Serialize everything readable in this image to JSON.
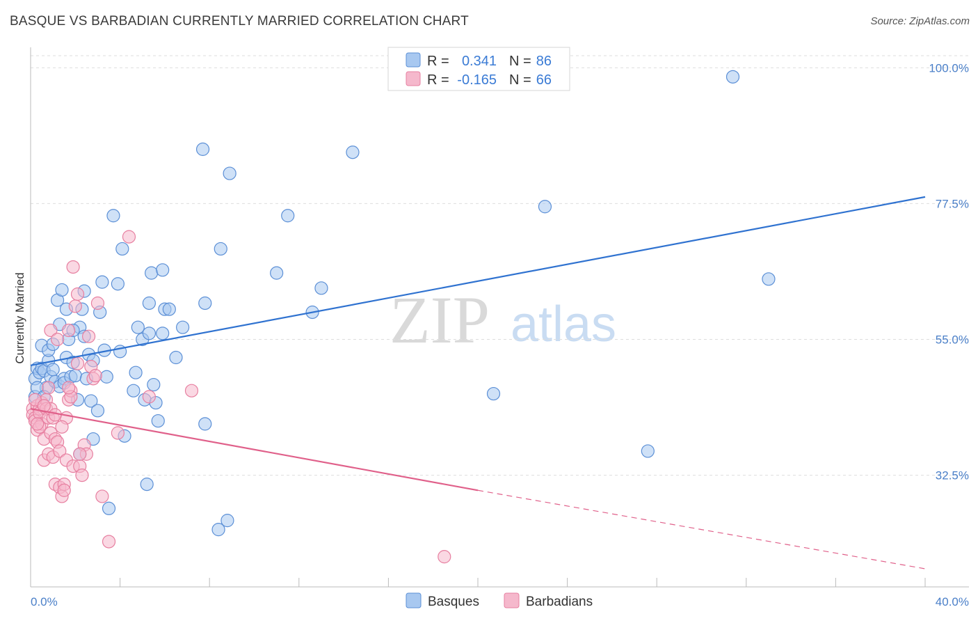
{
  "header": {
    "title": "BASQUE VS BARBADIAN CURRENTLY MARRIED CORRELATION CHART",
    "source": "Source: ZipAtlas.com"
  },
  "watermark": {
    "zip": "ZIP",
    "atlas": "atlas"
  },
  "legend": {
    "rows": [
      {
        "r_label": "R =",
        "r_value": "0.341",
        "n_label": "N =",
        "n_value": "86"
      },
      {
        "r_label": "R =",
        "r_value": "-0.165",
        "n_label": "N =",
        "n_value": "66"
      }
    ],
    "bottom": [
      "Basques",
      "Barbadians"
    ]
  },
  "colors": {
    "basques_fill": "#a8c8f0",
    "basques_stroke": "#5b8fd6",
    "basques_line": "#2f72d0",
    "barbadians_fill": "#f5b8cc",
    "barbadians_stroke": "#e77fa0",
    "barbadians_line": "#e0608a",
    "tick_text": "#4a7fc8",
    "grid": "#dddddd"
  },
  "chart_data": {
    "type": "scatter",
    "title": "BASQUE VS BARBADIAN CURRENTLY MARRIED CORRELATION CHART",
    "ylabel": "Currently Married",
    "xlim": [
      0,
      40
    ],
    "ylim": [
      14,
      102
    ],
    "x_tick_labels": [
      "0.0%",
      "40.0%"
    ],
    "y_ticks": [
      32.5,
      55.0,
      77.5,
      100.0
    ],
    "y_tick_labels": [
      "32.5%",
      "55.0%",
      "77.5%",
      "100.0%"
    ],
    "grid": true,
    "legend_position": "top-center",
    "series": [
      {
        "name": "Basques",
        "R": 0.341,
        "N": 86,
        "trend": {
          "x": [
            0,
            40
          ],
          "y": [
            50.7,
            78.6
          ],
          "style": "solid"
        },
        "points": [
          [
            0.2,
            48.5
          ],
          [
            0.2,
            45.5
          ],
          [
            0.3,
            50.2
          ],
          [
            0.4,
            49.5
          ],
          [
            0.5,
            50.2
          ],
          [
            0.5,
            54.0
          ],
          [
            0.6,
            49.8
          ],
          [
            0.7,
            47.0
          ],
          [
            0.8,
            51.5
          ],
          [
            0.8,
            53.2
          ],
          [
            0.9,
            48.8
          ],
          [
            1.0,
            50.0
          ],
          [
            1.0,
            54.2
          ],
          [
            1.1,
            48.0
          ],
          [
            1.2,
            61.5
          ],
          [
            1.3,
            57.5
          ],
          [
            1.3,
            47.2
          ],
          [
            1.4,
            63.2
          ],
          [
            1.5,
            48.5
          ],
          [
            1.5,
            47.8
          ],
          [
            1.6,
            52.0
          ],
          [
            1.6,
            60.0
          ],
          [
            1.7,
            55.0
          ],
          [
            1.8,
            48.8
          ],
          [
            1.9,
            51.2
          ],
          [
            2.0,
            49.0
          ],
          [
            2.1,
            45.0
          ],
          [
            2.2,
            57.0
          ],
          [
            2.2,
            36.0
          ],
          [
            2.3,
            60.0
          ],
          [
            2.4,
            63.0
          ],
          [
            2.5,
            48.5
          ],
          [
            2.6,
            52.5
          ],
          [
            2.7,
            44.8
          ],
          [
            2.8,
            51.5
          ],
          [
            2.8,
            38.5
          ],
          [
            3.0,
            43.2
          ],
          [
            3.1,
            59.5
          ],
          [
            3.2,
            64.5
          ],
          [
            3.3,
            53.2
          ],
          [
            3.4,
            48.8
          ],
          [
            3.5,
            27.0
          ],
          [
            3.7,
            75.5
          ],
          [
            3.9,
            64.2
          ],
          [
            4.0,
            53.0
          ],
          [
            4.1,
            70.0
          ],
          [
            4.2,
            39.0
          ],
          [
            4.6,
            46.5
          ],
          [
            4.7,
            49.5
          ],
          [
            4.8,
            57.0
          ],
          [
            5.0,
            55.0
          ],
          [
            5.1,
            45.0
          ],
          [
            5.2,
            31.0
          ],
          [
            5.3,
            56.0
          ],
          [
            5.3,
            61.0
          ],
          [
            5.4,
            66.0
          ],
          [
            5.5,
            47.5
          ],
          [
            5.6,
            44.5
          ],
          [
            5.7,
            41.5
          ],
          [
            5.9,
            66.5
          ],
          [
            5.9,
            56.0
          ],
          [
            6.0,
            60.0
          ],
          [
            6.2,
            60.0
          ],
          [
            6.5,
            52.0
          ],
          [
            6.8,
            57.0
          ],
          [
            7.7,
            86.5
          ],
          [
            7.8,
            41.0
          ],
          [
            7.8,
            61.0
          ],
          [
            8.4,
            23.5
          ],
          [
            8.5,
            70.0
          ],
          [
            8.8,
            25.0
          ],
          [
            8.9,
            82.5
          ],
          [
            11.0,
            66.0
          ],
          [
            11.5,
            75.5
          ],
          [
            12.6,
            59.5
          ],
          [
            13.0,
            63.5
          ],
          [
            14.4,
            86.0
          ],
          [
            20.7,
            46.0
          ],
          [
            23.0,
            77.0
          ],
          [
            27.6,
            36.5
          ],
          [
            31.4,
            98.5
          ],
          [
            33.0,
            65.0
          ],
          [
            0.3,
            47.0
          ],
          [
            0.6,
            45.5
          ],
          [
            1.9,
            56.5
          ],
          [
            2.4,
            55.5
          ]
        ]
      },
      {
        "name": "Barbadians",
        "R": -0.165,
        "N": 66,
        "trend": {
          "x": [
            0,
            20
          ],
          "y": [
            43.5,
            30.0
          ],
          "dashed_to": [
            40,
            17.0
          ],
          "style": "solid-then-dashed"
        },
        "points": [
          [
            0.1,
            43.5
          ],
          [
            0.1,
            42.5
          ],
          [
            0.2,
            42.0
          ],
          [
            0.2,
            41.5
          ],
          [
            0.3,
            44.0
          ],
          [
            0.3,
            40.0
          ],
          [
            0.4,
            43.5
          ],
          [
            0.4,
            42.8
          ],
          [
            0.5,
            44.5
          ],
          [
            0.5,
            41.0
          ],
          [
            0.6,
            38.5
          ],
          [
            0.6,
            35.0
          ],
          [
            0.7,
            45.0
          ],
          [
            0.7,
            43.5
          ],
          [
            0.8,
            42.0
          ],
          [
            0.8,
            36.0
          ],
          [
            0.9,
            56.5
          ],
          [
            0.9,
            39.5
          ],
          [
            1.0,
            42.0
          ],
          [
            1.0,
            35.5
          ],
          [
            1.1,
            38.5
          ],
          [
            1.1,
            31.0
          ],
          [
            1.2,
            55.0
          ],
          [
            1.2,
            38.0
          ],
          [
            1.3,
            36.5
          ],
          [
            1.3,
            30.5
          ],
          [
            1.4,
            29.0
          ],
          [
            1.5,
            31.0
          ],
          [
            1.5,
            30.0
          ],
          [
            1.6,
            42.0
          ],
          [
            1.6,
            35.0
          ],
          [
            1.7,
            56.5
          ],
          [
            1.7,
            45.0
          ],
          [
            1.8,
            46.5
          ],
          [
            1.8,
            45.5
          ],
          [
            1.9,
            67.0
          ],
          [
            1.9,
            34.0
          ],
          [
            2.0,
            60.5
          ],
          [
            2.1,
            62.5
          ],
          [
            2.1,
            51.0
          ],
          [
            2.2,
            34.0
          ],
          [
            2.3,
            32.5
          ],
          [
            2.4,
            37.5
          ],
          [
            2.5,
            36.0
          ],
          [
            2.6,
            55.5
          ],
          [
            2.7,
            50.5
          ],
          [
            2.8,
            48.5
          ],
          [
            2.9,
            49.0
          ],
          [
            3.0,
            61.0
          ],
          [
            3.2,
            29.0
          ],
          [
            3.5,
            21.5
          ],
          [
            3.9,
            39.5
          ],
          [
            4.4,
            72.0
          ],
          [
            5.3,
            45.5
          ],
          [
            7.2,
            46.5
          ],
          [
            18.5,
            19.0
          ],
          [
            0.4,
            40.5
          ],
          [
            0.9,
            43.5
          ],
          [
            0.2,
            45.0
          ],
          [
            0.6,
            44.0
          ],
          [
            1.4,
            40.5
          ],
          [
            0.8,
            47.0
          ],
          [
            1.1,
            42.5
          ],
          [
            0.3,
            41.0
          ],
          [
            1.7,
            47.0
          ],
          [
            2.2,
            36.0
          ]
        ]
      }
    ]
  }
}
